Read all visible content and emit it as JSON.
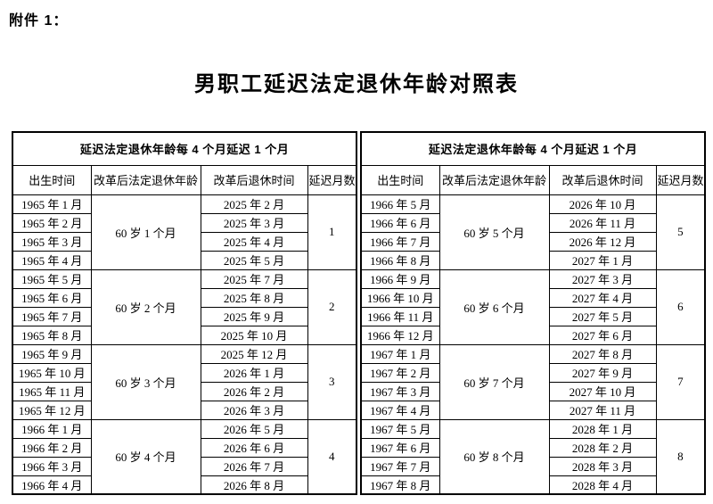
{
  "page": {
    "attachment_label": "附件 1：",
    "title": "男职工延迟法定退休年龄对照表"
  },
  "colors": {
    "background": "#ffffff",
    "text": "#000000",
    "border": "#000000"
  },
  "table": {
    "span_header": "延迟法定退休年龄每 4 个月延迟 1 个月",
    "columns": [
      "出生时间",
      "改革后法定退休年龄",
      "改革后退休时间",
      "延迟月数"
    ],
    "halves": [
      {
        "groups": [
          {
            "age": "60 岁 1 个月",
            "delay_months": "1",
            "rows": [
              {
                "birth": "1965 年 1 月",
                "retire": "2025 年 2 月"
              },
              {
                "birth": "1965 年 2 月",
                "retire": "2025 年 3 月"
              },
              {
                "birth": "1965 年 3 月",
                "retire": "2025 年 4 月"
              },
              {
                "birth": "1965 年 4 月",
                "retire": "2025 年 5 月"
              }
            ]
          },
          {
            "age": "60 岁 2 个月",
            "delay_months": "2",
            "rows": [
              {
                "birth": "1965 年 5 月",
                "retire": "2025 年 7 月"
              },
              {
                "birth": "1965 年 6 月",
                "retire": "2025 年 8 月"
              },
              {
                "birth": "1965 年 7 月",
                "retire": "2025 年 9 月"
              },
              {
                "birth": "1965 年 8 月",
                "retire": "2025 年 10 月"
              }
            ]
          },
          {
            "age": "60 岁 3 个月",
            "delay_months": "3",
            "rows": [
              {
                "birth": "1965 年 9 月",
                "retire": "2025 年 12 月"
              },
              {
                "birth": "1965 年 10 月",
                "retire": "2026 年 1 月"
              },
              {
                "birth": "1965 年 11 月",
                "retire": "2026 年 2 月"
              },
              {
                "birth": "1965 年 12 月",
                "retire": "2026 年 3 月"
              }
            ]
          },
          {
            "age": "60 岁 4 个月",
            "delay_months": "4",
            "rows": [
              {
                "birth": "1966 年 1 月",
                "retire": "2026 年 5 月"
              },
              {
                "birth": "1966 年 2 月",
                "retire": "2026 年 6 月"
              },
              {
                "birth": "1966 年 3 月",
                "retire": "2026 年 7 月"
              },
              {
                "birth": "1966 年 4 月",
                "retire": "2026 年 8 月"
              }
            ]
          }
        ]
      },
      {
        "groups": [
          {
            "age": "60 岁 5 个月",
            "delay_months": "5",
            "rows": [
              {
                "birth": "1966 年 5 月",
                "retire": "2026 年 10 月"
              },
              {
                "birth": "1966 年 6 月",
                "retire": "2026 年 11 月"
              },
              {
                "birth": "1966 年 7 月",
                "retire": "2026 年 12 月"
              },
              {
                "birth": "1966 年 8 月",
                "retire": "2027 年 1 月"
              }
            ]
          },
          {
            "age": "60 岁 6 个月",
            "delay_months": "6",
            "rows": [
              {
                "birth": "1966 年 9 月",
                "retire": "2027 年 3 月"
              },
              {
                "birth": "1966 年 10 月",
                "retire": "2027 年 4 月"
              },
              {
                "birth": "1966 年 11 月",
                "retire": "2027 年 5 月"
              },
              {
                "birth": "1966 年 12 月",
                "retire": "2027 年 6 月"
              }
            ]
          },
          {
            "age": "60 岁 7 个月",
            "delay_months": "7",
            "rows": [
              {
                "birth": "1967 年 1 月",
                "retire": "2027 年 8 月"
              },
              {
                "birth": "1967 年 2 月",
                "retire": "2027 年 9 月"
              },
              {
                "birth": "1967 年 3 月",
                "retire": "2027 年 10 月"
              },
              {
                "birth": "1967 年 4 月",
                "retire": "2027 年 11 月"
              }
            ]
          },
          {
            "age": "60 岁 8 个月",
            "delay_months": "8",
            "rows": [
              {
                "birth": "1967 年 5 月",
                "retire": "2028 年 1 月"
              },
              {
                "birth": "1967 年 6 月",
                "retire": "2028 年 2 月"
              },
              {
                "birth": "1967 年 7 月",
                "retire": "2028 年 3 月"
              },
              {
                "birth": "1967 年 8 月",
                "retire": "2028 年 4 月"
              }
            ]
          }
        ]
      }
    ]
  }
}
